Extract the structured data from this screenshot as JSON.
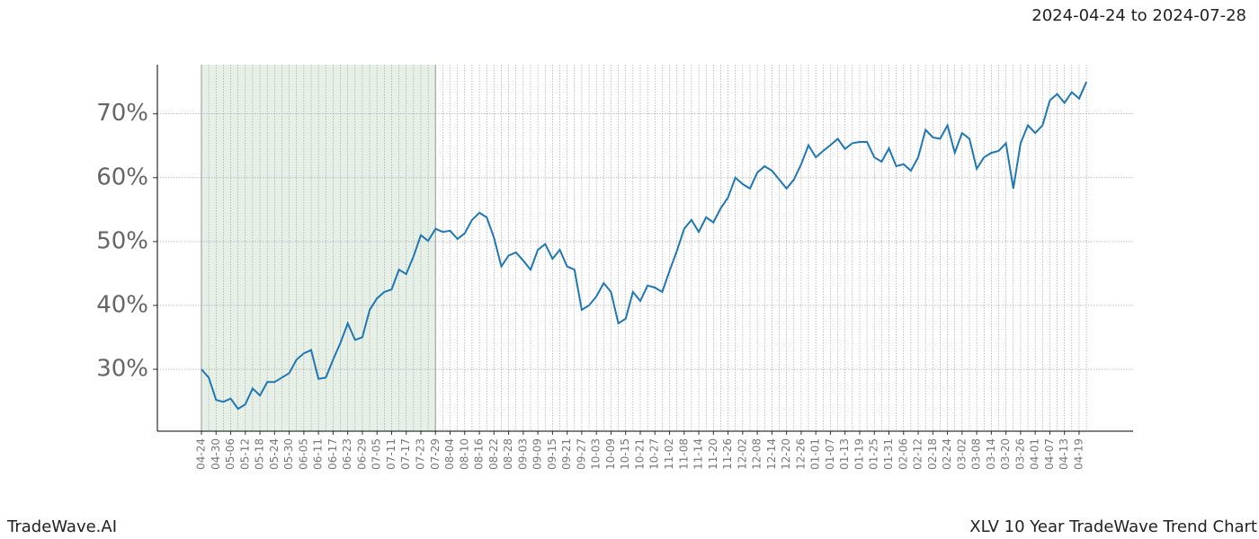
{
  "chart_data": {
    "type": "line",
    "title": "2024-04-24 to 2024-07-28",
    "footer_left": "TradeWave.AI",
    "footer_right": "XLV 10 Year TradeWave Trend Chart",
    "categories": [
      "04-24",
      null,
      "04-30",
      null,
      "05-06",
      null,
      "05-12",
      null,
      "05-18",
      null,
      "05-24",
      null,
      "05-30",
      null,
      "06-05",
      null,
      "06-11",
      null,
      "06-17",
      null,
      "06-23",
      null,
      "06-29",
      null,
      "07-05",
      null,
      "07-11",
      null,
      "07-17",
      null,
      "07-23",
      null,
      "07-29",
      null,
      "08-04",
      null,
      "08-10",
      null,
      "08-16",
      null,
      "08-22",
      null,
      "08-28",
      null,
      "09-03",
      null,
      "09-09",
      null,
      "09-15",
      null,
      "09-21",
      null,
      "09-27",
      null,
      "10-03",
      null,
      "10-09",
      null,
      "10-15",
      null,
      "10-21",
      null,
      "10-27",
      null,
      "11-02",
      null,
      "11-08",
      null,
      "11-14",
      null,
      "11-20",
      null,
      "11-26",
      null,
      "12-02",
      null,
      "12-08",
      null,
      "12-14",
      null,
      "12-20",
      null,
      "12-26",
      null,
      "01-01",
      null,
      "01-07",
      null,
      "01-13",
      null,
      "01-19",
      null,
      "01-25",
      null,
      "01-31",
      null,
      "02-06",
      null,
      "02-12",
      null,
      "02-18",
      null,
      "02-24",
      null,
      "03-02",
      null,
      "03-08",
      null,
      "03-14",
      null,
      "03-20",
      null,
      "03-26",
      null,
      "04-01",
      null,
      "04-07",
      null,
      "04-13",
      null,
      "04-19",
      null
    ],
    "values": [
      30.0,
      28.7,
      25.2,
      24.9,
      25.4,
      23.8,
      24.5,
      27.0,
      25.9,
      28.0,
      28.0,
      28.7,
      29.4,
      31.5,
      32.5,
      33.0,
      28.5,
      28.7,
      31.5,
      34.1,
      37.2,
      34.6,
      35.0,
      39.3,
      41.1,
      42.1,
      42.5,
      45.6,
      44.9,
      47.7,
      51.0,
      50.1,
      52.0,
      51.5,
      51.7,
      50.4,
      51.3,
      53.4,
      54.5,
      53.8,
      50.6,
      46.1,
      47.8,
      48.3,
      47.0,
      45.6,
      48.7,
      49.6,
      47.3,
      48.7,
      46.1,
      45.6,
      39.3,
      40.0,
      41.4,
      43.5,
      42.1,
      37.2,
      37.9,
      42.1,
      40.7,
      43.1,
      42.8,
      42.1,
      45.4,
      48.5,
      52.0,
      53.4,
      51.5,
      53.8,
      53.0,
      55.2,
      56.9,
      60.0,
      59.0,
      58.3,
      60.8,
      61.8,
      61.1,
      59.7,
      58.3,
      59.7,
      62.1,
      65.1,
      63.2,
      64.2,
      65.1,
      66.1,
      64.5,
      65.4,
      65.6,
      65.6,
      63.2,
      62.5,
      64.6,
      61.8,
      62.1,
      61.1,
      63.2,
      67.5,
      66.3,
      66.1,
      68.2,
      63.9,
      67.0,
      66.1,
      61.4,
      63.2,
      63.9,
      64.2,
      65.4,
      58.3,
      65.4,
      68.2,
      67.0,
      68.2,
      72.1,
      73.1,
      71.7,
      73.4,
      72.4,
      75.0
    ],
    "color": "#1f77b4",
    "highlight": [
      "04-24",
      "07-29"
    ],
    "highlight_color": "#e6f0e6",
    "ylim": [
      20.3,
      77.7
    ],
    "yticks": [
      {
        "value": 30,
        "label": "30%"
      },
      {
        "value": 40,
        "label": "40%"
      },
      {
        "value": 50,
        "label": "50%"
      },
      {
        "value": 60,
        "label": "60%"
      },
      {
        "value": 70,
        "label": "70%"
      }
    ],
    "grid": true
  }
}
